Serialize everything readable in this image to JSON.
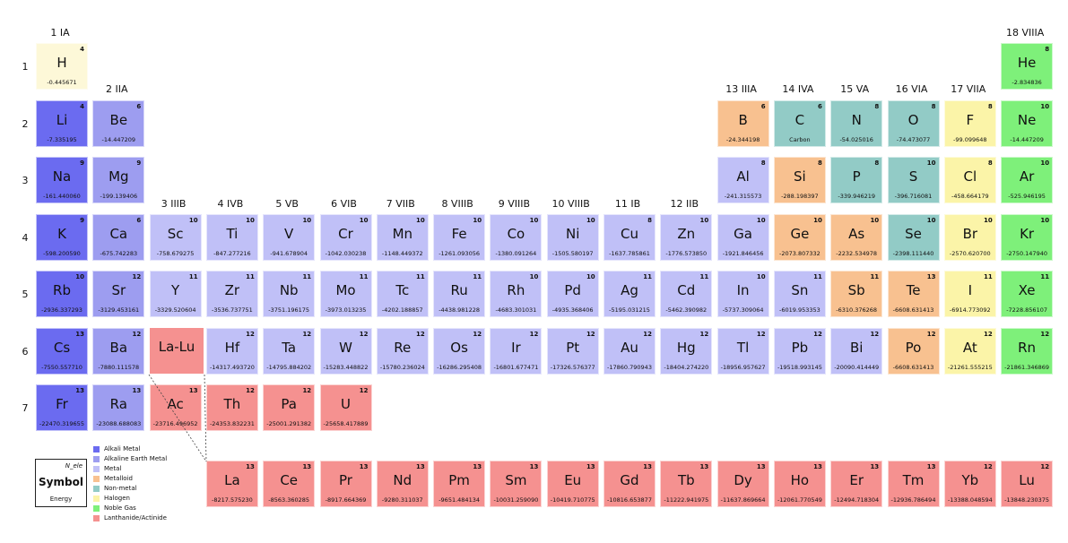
{
  "colors": {
    "alkali": "#6b6bf0",
    "alkaline": "#9d9df0",
    "metal": "#c0c0f7",
    "metalloid": "#f8c190",
    "nonmetal": "#92cbc6",
    "halogen": "#fbf4a8",
    "noble": "#7ef07a",
    "lanthanide": "#f59190",
    "hydrogen": "#fdf8d8"
  },
  "group_labels": [
    "1 IA",
    "2 IIA",
    "3 IIIB",
    "4 IVB",
    "5 VB",
    "6 VIB",
    "7 VIIB",
    "8 VIIIB",
    "9 VIIIB",
    "10 VIIIB",
    "11 IB",
    "12 IIB",
    "13 IIIA",
    "14 IVA",
    "15 VA",
    "16 VIA",
    "17 VIIA",
    "18 VIIIA"
  ],
  "period_labels": [
    "1",
    "2",
    "3",
    "4",
    "5",
    "6",
    "7"
  ],
  "lalu_label": "La-Lu",
  "elements": [
    {
      "s": "H",
      "n": "4",
      "e": "-0.445671",
      "c": "hydrogen",
      "col": 1,
      "row": 1
    },
    {
      "s": "He",
      "n": "8",
      "e": "-2.834836",
      "c": "noble",
      "col": 18,
      "row": 1
    },
    {
      "s": "Li",
      "n": "4",
      "e": "-7.335195",
      "c": "alkali",
      "col": 1,
      "row": 2
    },
    {
      "s": "Be",
      "n": "6",
      "e": "-14.447209",
      "c": "alkaline",
      "col": 2,
      "row": 2
    },
    {
      "s": "B",
      "n": "6",
      "e": "-24.344198",
      "c": "metalloid",
      "col": 13,
      "row": 2
    },
    {
      "s": "C",
      "n": "6",
      "e": "Carbon",
      "c": "nonmetal",
      "col": 14,
      "row": 2
    },
    {
      "s": "N",
      "n": "8",
      "e": "-54.025016",
      "c": "nonmetal",
      "col": 15,
      "row": 2
    },
    {
      "s": "O",
      "n": "8",
      "e": "-74.473077",
      "c": "nonmetal",
      "col": 16,
      "row": 2
    },
    {
      "s": "F",
      "n": "8",
      "e": "-99.099648",
      "c": "halogen",
      "col": 17,
      "row": 2
    },
    {
      "s": "Ne",
      "n": "10",
      "e": "-14.447209",
      "c": "noble",
      "col": 18,
      "row": 2
    },
    {
      "s": "Na",
      "n": "9",
      "e": "-161.440060",
      "c": "alkali",
      "col": 1,
      "row": 3
    },
    {
      "s": "Mg",
      "n": "9",
      "e": "-199.139406",
      "c": "alkaline",
      "col": 2,
      "row": 3
    },
    {
      "s": "Al",
      "n": "8",
      "e": "-241.315573",
      "c": "metal",
      "col": 13,
      "row": 3
    },
    {
      "s": "Si",
      "n": "8",
      "e": "-288.198397",
      "c": "metalloid",
      "col": 14,
      "row": 3
    },
    {
      "s": "P",
      "n": "8",
      "e": "-339.946219",
      "c": "nonmetal",
      "col": 15,
      "row": 3
    },
    {
      "s": "S",
      "n": "10",
      "e": "-396.716081",
      "c": "nonmetal",
      "col": 16,
      "row": 3
    },
    {
      "s": "Cl",
      "n": "8",
      "e": "-458.664179",
      "c": "halogen",
      "col": 17,
      "row": 3
    },
    {
      "s": "Ar",
      "n": "10",
      "e": "-525.946195",
      "c": "noble",
      "col": 18,
      "row": 3
    },
    {
      "s": "K",
      "n": "9",
      "e": "-598.200590",
      "c": "alkali",
      "col": 1,
      "row": 4
    },
    {
      "s": "Ca",
      "n": "6",
      "e": "-675.742283",
      "c": "alkaline",
      "col": 2,
      "row": 4
    },
    {
      "s": "Sc",
      "n": "10",
      "e": "-758.679275",
      "c": "metal",
      "col": 3,
      "row": 4
    },
    {
      "s": "Ti",
      "n": "10",
      "e": "-847.277216",
      "c": "metal",
      "col": 4,
      "row": 4
    },
    {
      "s": "V",
      "n": "10",
      "e": "-941.678904",
      "c": "metal",
      "col": 5,
      "row": 4
    },
    {
      "s": "Cr",
      "n": "10",
      "e": "-1042.030238",
      "c": "metal",
      "col": 6,
      "row": 4
    },
    {
      "s": "Mn",
      "n": "10",
      "e": "-1148.449372",
      "c": "metal",
      "col": 7,
      "row": 4
    },
    {
      "s": "Fe",
      "n": "10",
      "e": "-1261.093056",
      "c": "metal",
      "col": 8,
      "row": 4
    },
    {
      "s": "Co",
      "n": "10",
      "e": "-1380.091264",
      "c": "metal",
      "col": 9,
      "row": 4
    },
    {
      "s": "Ni",
      "n": "10",
      "e": "-1505.580197",
      "c": "metal",
      "col": 10,
      "row": 4
    },
    {
      "s": "Cu",
      "n": "8",
      "e": "-1637.785861",
      "c": "metal",
      "col": 11,
      "row": 4
    },
    {
      "s": "Zn",
      "n": "10",
      "e": "-1776.573850",
      "c": "metal",
      "col": 12,
      "row": 4
    },
    {
      "s": "Ga",
      "n": "10",
      "e": "-1921.846456",
      "c": "metal",
      "col": 13,
      "row": 4
    },
    {
      "s": "Ge",
      "n": "10",
      "e": "-2073.807332",
      "c": "metalloid",
      "col": 14,
      "row": 4
    },
    {
      "s": "As",
      "n": "10",
      "e": "-2232.534978",
      "c": "metalloid",
      "col": 15,
      "row": 4
    },
    {
      "s": "Se",
      "n": "10",
      "e": "-2398.111440",
      "c": "nonmetal",
      "col": 16,
      "row": 4
    },
    {
      "s": "Br",
      "n": "10",
      "e": "-2570.620700",
      "c": "halogen",
      "col": 17,
      "row": 4
    },
    {
      "s": "Kr",
      "n": "10",
      "e": "-2750.147940",
      "c": "noble",
      "col": 18,
      "row": 4
    },
    {
      "s": "Rb",
      "n": "10",
      "e": "-2936.337293",
      "c": "alkali",
      "col": 1,
      "row": 5
    },
    {
      "s": "Sr",
      "n": "12",
      "e": "-3129.453161",
      "c": "alkaline",
      "col": 2,
      "row": 5
    },
    {
      "s": "Y",
      "n": "11",
      "e": "-3329.520604",
      "c": "metal",
      "col": 3,
      "row": 5
    },
    {
      "s": "Zr",
      "n": "11",
      "e": "-3536.737751",
      "c": "metal",
      "col": 4,
      "row": 5
    },
    {
      "s": "Nb",
      "n": "11",
      "e": "-3751.196175",
      "c": "metal",
      "col": 5,
      "row": 5
    },
    {
      "s": "Mo",
      "n": "11",
      "e": "-3973.013235",
      "c": "metal",
      "col": 6,
      "row": 5
    },
    {
      "s": "Tc",
      "n": "11",
      "e": "-4202.188857",
      "c": "metal",
      "col": 7,
      "row": 5
    },
    {
      "s": "Ru",
      "n": "11",
      "e": "-4438.981228",
      "c": "metal",
      "col": 8,
      "row": 5
    },
    {
      "s": "Rh",
      "n": "10",
      "e": "-4683.301031",
      "c": "metal",
      "col": 9,
      "row": 5
    },
    {
      "s": "Pd",
      "n": "10",
      "e": "-4935.368406",
      "c": "metal",
      "col": 10,
      "row": 5
    },
    {
      "s": "Ag",
      "n": "11",
      "e": "-5195.031215",
      "c": "metal",
      "col": 11,
      "row": 5
    },
    {
      "s": "Cd",
      "n": "11",
      "e": "-5462.390982",
      "c": "metal",
      "col": 12,
      "row": 5
    },
    {
      "s": "In",
      "n": "10",
      "e": "-5737.309064",
      "c": "metal",
      "col": 13,
      "row": 5
    },
    {
      "s": "Sn",
      "n": "11",
      "e": "-6019.953353",
      "c": "metal",
      "col": 14,
      "row": 5
    },
    {
      "s": "Sb",
      "n": "11",
      "e": "-6310.376268",
      "c": "metalloid",
      "col": 15,
      "row": 5
    },
    {
      "s": "Te",
      "n": "13",
      "e": "-6608.631413",
      "c": "metalloid",
      "col": 16,
      "row": 5
    },
    {
      "s": "I",
      "n": "11",
      "e": "-6914.773092",
      "c": "halogen",
      "col": 17,
      "row": 5
    },
    {
      "s": "Xe",
      "n": "11",
      "e": "-7228.856107",
      "c": "noble",
      "col": 18,
      "row": 5
    },
    {
      "s": "Cs",
      "n": "13",
      "e": "-7550.557710",
      "c": "alkali",
      "col": 1,
      "row": 6
    },
    {
      "s": "Ba",
      "n": "12",
      "e": "-7880.111578",
      "c": "alkaline",
      "col": 2,
      "row": 6
    },
    {
      "s": "Hf",
      "n": "12",
      "e": "-14317.493720",
      "c": "metal",
      "col": 4,
      "row": 6
    },
    {
      "s": "Ta",
      "n": "12",
      "e": "-14795.884202",
      "c": "metal",
      "col": 5,
      "row": 6
    },
    {
      "s": "W",
      "n": "12",
      "e": "-15283.448822",
      "c": "metal",
      "col": 6,
      "row": 6
    },
    {
      "s": "Re",
      "n": "12",
      "e": "-15780.236024",
      "c": "metal",
      "col": 7,
      "row": 6
    },
    {
      "s": "Os",
      "n": "12",
      "e": "-16286.295408",
      "c": "metal",
      "col": 8,
      "row": 6
    },
    {
      "s": "Ir",
      "n": "12",
      "e": "-16801.677471",
      "c": "metal",
      "col": 9,
      "row": 6
    },
    {
      "s": "Pt",
      "n": "12",
      "e": "-17326.576377",
      "c": "metal",
      "col": 10,
      "row": 6
    },
    {
      "s": "Au",
      "n": "12",
      "e": "-17860.790943",
      "c": "metal",
      "col": 11,
      "row": 6
    },
    {
      "s": "Hg",
      "n": "12",
      "e": "-18404.274220",
      "c": "metal",
      "col": 12,
      "row": 6
    },
    {
      "s": "Tl",
      "n": "12",
      "e": "-18956.957627",
      "c": "metal",
      "col": 13,
      "row": 6
    },
    {
      "s": "Pb",
      "n": "12",
      "e": "-19518.993145",
      "c": "metal",
      "col": 14,
      "row": 6
    },
    {
      "s": "Bi",
      "n": "12",
      "e": "-20090.414449",
      "c": "metal",
      "col": 15,
      "row": 6
    },
    {
      "s": "Po",
      "n": "12",
      "e": "-6608.631413",
      "c": "metalloid",
      "col": 16,
      "row": 6
    },
    {
      "s": "At",
      "n": "12",
      "e": "-21261.555215",
      "c": "halogen",
      "col": 17,
      "row": 6
    },
    {
      "s": "Rn",
      "n": "12",
      "e": "-21861.346869",
      "c": "noble",
      "col": 18,
      "row": 6
    },
    {
      "s": "Fr",
      "n": "13",
      "e": "-22470.319655",
      "c": "alkali",
      "col": 1,
      "row": 7
    },
    {
      "s": "Ra",
      "n": "13",
      "e": "-23088.688083",
      "c": "alkaline",
      "col": 2,
      "row": 7
    },
    {
      "s": "Ac",
      "n": "13",
      "e": "-23716.496952",
      "c": "lanthanide",
      "col": 3,
      "row": 7
    },
    {
      "s": "Th",
      "n": "12",
      "e": "-24353.832231",
      "c": "lanthanide",
      "col": 4,
      "row": 7
    },
    {
      "s": "Pa",
      "n": "12",
      "e": "-25001.291382",
      "c": "lanthanide",
      "col": 5,
      "row": 7
    },
    {
      "s": "U",
      "n": "12",
      "e": "-25658.417889",
      "c": "lanthanide",
      "col": 6,
      "row": 7
    },
    {
      "s": "La",
      "n": "13",
      "e": "-8217.575230",
      "c": "lanthanide",
      "col": 4,
      "row": 8
    },
    {
      "s": "Ce",
      "n": "13",
      "e": "-8563.360285",
      "c": "lanthanide",
      "col": 5,
      "row": 8
    },
    {
      "s": "Pr",
      "n": "13",
      "e": "-8917.664369",
      "c": "lanthanide",
      "col": 6,
      "row": 8
    },
    {
      "s": "Nd",
      "n": "13",
      "e": "-9280.311037",
      "c": "lanthanide",
      "col": 7,
      "row": 8
    },
    {
      "s": "Pm",
      "n": "13",
      "e": "-9651.484134",
      "c": "lanthanide",
      "col": 8,
      "row": 8
    },
    {
      "s": "Sm",
      "n": "13",
      "e": "-10031.259090",
      "c": "lanthanide",
      "col": 9,
      "row": 8
    },
    {
      "s": "Eu",
      "n": "13",
      "e": "-10419.710775",
      "c": "lanthanide",
      "col": 10,
      "row": 8
    },
    {
      "s": "Gd",
      "n": "13",
      "e": "-10816.653877",
      "c": "lanthanide",
      "col": 11,
      "row": 8
    },
    {
      "s": "Tb",
      "n": "13",
      "e": "-11222.941975",
      "c": "lanthanide",
      "col": 12,
      "row": 8
    },
    {
      "s": "Dy",
      "n": "13",
      "e": "-11637.869664",
      "c": "lanthanide",
      "col": 13,
      "row": 8
    },
    {
      "s": "Ho",
      "n": "13",
      "e": "-12061.770549",
      "c": "lanthanide",
      "col": 14,
      "row": 8
    },
    {
      "s": "Er",
      "n": "13",
      "e": "-12494.718304",
      "c": "lanthanide",
      "col": 15,
      "row": 8
    },
    {
      "s": "Tm",
      "n": "13",
      "e": "-12936.786494",
      "c": "lanthanide",
      "col": 16,
      "row": 8
    },
    {
      "s": "Yb",
      "n": "12",
      "e": "-13388.048594",
      "c": "lanthanide",
      "col": 17,
      "row": 8
    },
    {
      "s": "Lu",
      "n": "12",
      "e": "-13848.230375",
      "c": "lanthanide",
      "col": 18,
      "row": 8
    }
  ],
  "legend": [
    {
      "label": "Alkali Metal",
      "c": "alkali"
    },
    {
      "label": "Alkaline Earth Metal",
      "c": "alkaline"
    },
    {
      "label": "Metal",
      "c": "metal"
    },
    {
      "label": "Metalloid",
      "c": "metalloid"
    },
    {
      "label": "Non-metal",
      "c": "nonmetal"
    },
    {
      "label": "Halogen",
      "c": "halogen"
    },
    {
      "label": "Noble Gas",
      "c": "noble"
    },
    {
      "label": "Lanthanide/Actinide",
      "c": "lanthanide"
    }
  ],
  "key": {
    "n": "N_ele",
    "symbol": "Symbol",
    "energy": "Energy"
  }
}
